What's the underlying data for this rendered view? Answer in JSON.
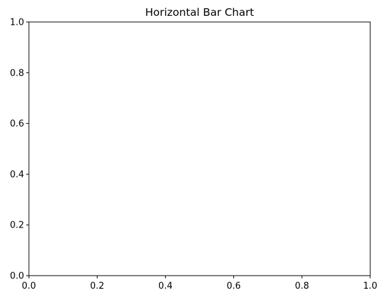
{
  "chart_data": {
    "type": "bar",
    "orientation": "horizontal",
    "title": "Horizontal Bar Chart",
    "xlabel": "",
    "ylabel": "",
    "categories": [],
    "values": [],
    "xlim": [
      0,
      1
    ],
    "ylim": [
      0,
      1
    ],
    "xticks": [
      "0.0",
      "0.2",
      "0.4",
      "0.6",
      "0.8",
      "1.0"
    ],
    "yticks": [
      "0.0",
      "0.2",
      "0.4",
      "0.6",
      "0.8",
      "1.0"
    ],
    "grid": false,
    "legend": "none"
  }
}
